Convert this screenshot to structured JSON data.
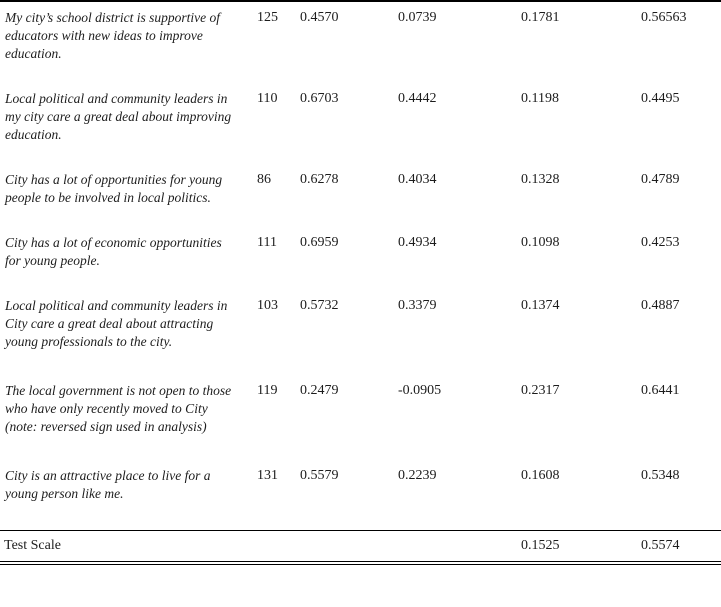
{
  "page": {
    "background_color": "#ffffff",
    "text_color": "#1c1c1c",
    "rule_color": "#000000"
  },
  "table": {
    "rows": [
      {
        "item": "My city’s school district is supportive of educators with new ideas to improve education.",
        "obs": "125",
        "item_test": "0.4570",
        "item_rest": "0.0739",
        "interitem_cov": "0.1781",
        "alpha": "0.56563"
      },
      {
        "item": "Local political and community leaders in my city care a great deal about improving education.",
        "obs": "110",
        "item_test": "0.6703",
        "item_rest": "0.4442",
        "interitem_cov": "0.1198",
        "alpha": "0.4495"
      },
      {
        "item": "City has a lot of opportunities for young people to be involved in local politics.",
        "obs": "86",
        "item_test": "0.6278",
        "item_rest": "0.4034",
        "interitem_cov": "0.1328",
        "alpha": "0.4789"
      },
      {
        "item": "City has a lot of economic opportunities for young people.",
        "obs": "111",
        "item_test": "0.6959",
        "item_rest": "0.4934",
        "interitem_cov": "0.1098",
        "alpha": "0.4253"
      },
      {
        "item": "Local political and community leaders in City care a great deal about attracting young professionals to the city.",
        "obs": "103",
        "item_test": "0.5732",
        "item_rest": "0.3379",
        "interitem_cov": "0.1374",
        "alpha": "0.4887"
      },
      {
        "item": "The local government is not open to those who have only recently moved to City (note: reversed sign used in analysis)",
        "obs": "119",
        "item_test": "0.2479",
        "item_rest": "-0.0905",
        "interitem_cov": "0.2317",
        "alpha": "0.6441"
      },
      {
        "item": "City is an attractive place to live for a young person like me.",
        "obs": "131",
        "item_test": "0.5579",
        "item_rest": "0.2239",
        "interitem_cov": "0.1608",
        "alpha": "0.5348"
      }
    ],
    "footer": {
      "label": "Test Scale",
      "obs": "",
      "item_test": "",
      "item_rest": "",
      "interitem_cov": "0.1525",
      "alpha": "0.5574"
    }
  }
}
